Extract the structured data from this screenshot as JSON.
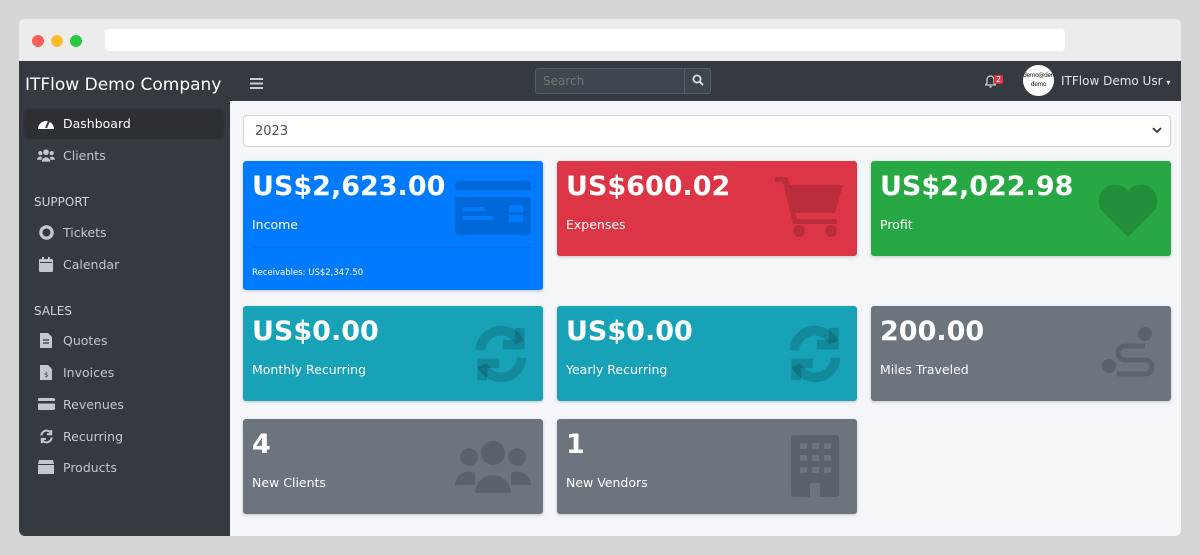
{
  "window": {
    "controls": [
      "close",
      "minimize",
      "maximize"
    ],
    "colors": {
      "close": "#fe5f57",
      "minimize": "#febc2e",
      "maximize": "#28c840"
    }
  },
  "sidebar": {
    "brand": "ITFlow Demo Company",
    "items": [
      {
        "label": "Dashboard",
        "icon": "tachometer-icon",
        "active": true
      },
      {
        "label": "Clients",
        "icon": "users-icon"
      }
    ],
    "sections": [
      {
        "header": "SUPPORT",
        "items": [
          {
            "label": "Tickets",
            "icon": "life-ring-icon"
          },
          {
            "label": "Calendar",
            "icon": "calendar-icon"
          }
        ]
      },
      {
        "header": "SALES",
        "items": [
          {
            "label": "Quotes",
            "icon": "file-icon"
          },
          {
            "label": "Invoices",
            "icon": "invoice-icon"
          },
          {
            "label": "Revenues",
            "icon": "credit-card-icon"
          },
          {
            "label": "Recurring",
            "icon": "sync-icon"
          },
          {
            "label": "Products",
            "icon": "box-icon"
          }
        ]
      }
    ]
  },
  "topnav": {
    "search_placeholder": "Search",
    "notifications": "2",
    "avatar_text": "demo@demo demo",
    "user": "ITFlow Demo Usr"
  },
  "filter": {
    "year": "2023"
  },
  "cards": [
    {
      "value": "US$2,623.00",
      "label": "Income",
      "sub": "Receivables: US$2,347.50",
      "color": "#007bff",
      "icon": "credit-card-icon"
    },
    {
      "value": "US$600.02",
      "label": "Expenses",
      "color": "#dc3545",
      "icon": "cart-icon"
    },
    {
      "value": "US$2,022.98",
      "label": "Profit",
      "color": "#28a745",
      "icon": "heart-icon"
    },
    {
      "value": "US$0.00",
      "label": "Monthly Recurring",
      "color": "#17a2b8",
      "icon": "sync-icon"
    },
    {
      "value": "US$0.00",
      "label": "Yearly Recurring",
      "color": "#17a2b8",
      "icon": "sync-icon"
    },
    {
      "value": "200.00",
      "label": "Miles Traveled",
      "color": "#6c757d",
      "icon": "route-icon"
    },
    {
      "value": "4",
      "label": "New Clients",
      "color": "#6c757d",
      "icon": "users-icon"
    },
    {
      "value": "1",
      "label": "New Vendors",
      "color": "#6c757d",
      "icon": "building-icon"
    }
  ]
}
